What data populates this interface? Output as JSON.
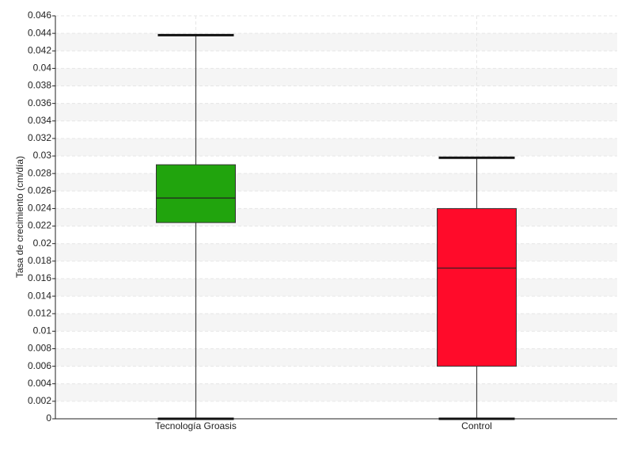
{
  "chart_data": {
    "type": "box",
    "y_label": "Tasa de crecimiento (cm/día)",
    "boxes": [
      {
        "category": "Tecnología Groasis",
        "min": 0,
        "q1": 0.0224,
        "median": 0.0252,
        "q3": 0.029,
        "max": 0.0438,
        "color": "#21a40d"
      },
      {
        "category": "Control",
        "min": 0,
        "q1": 0.006,
        "median": 0.0172,
        "q3": 0.024,
        "max": 0.0298,
        "color": "#ff0b2a"
      }
    ],
    "ylim": [
      0,
      0.046
    ],
    "yticks": [
      0,
      0.002,
      0.004,
      0.006,
      0.008,
      0.01,
      0.012,
      0.014,
      0.016,
      0.018,
      0.02,
      0.022,
      0.024,
      0.026,
      0.028,
      0.03,
      0.032,
      0.034,
      0.036,
      0.038,
      0.04,
      0.042,
      0.044,
      0.046
    ],
    "grid": true
  }
}
